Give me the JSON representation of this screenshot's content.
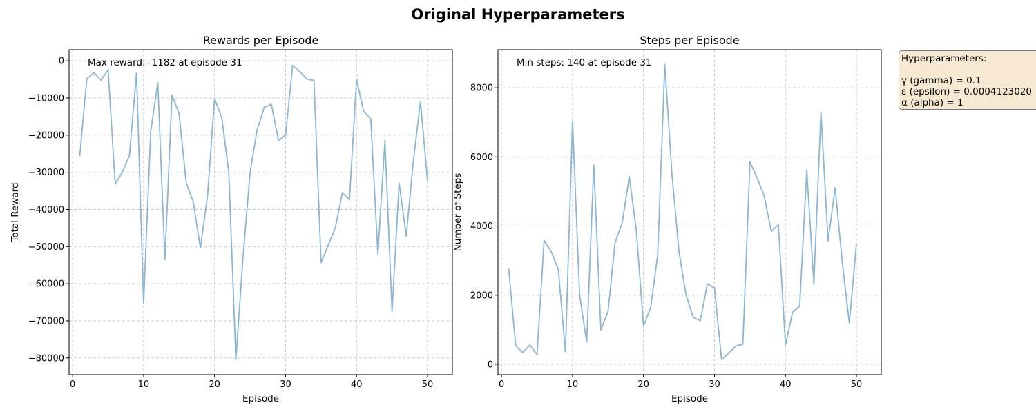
{
  "figure": {
    "suptitle": "Original Hyperparameters"
  },
  "hyperparameters": {
    "heading": "Hyperparameters:",
    "lines": [
      "γ (gamma) = 0.1",
      "ε (epsilon) = 0.0004123020",
      "α (alpha) = 1"
    ]
  },
  "colors": {
    "line": "#8ab6d4",
    "grid": "#c8c8c8",
    "box_fill": "#f7e9d1"
  },
  "chart_data": [
    {
      "type": "line",
      "title": "Rewards per Episode",
      "xlabel": "Episode",
      "ylabel": "Total Reward",
      "annotation": "Max reward: -1182 at episode 31",
      "xlim": [
        -0.5,
        53.5
      ],
      "ylim": [
        -84500,
        3000
      ],
      "xticks": [
        0,
        10,
        20,
        30,
        40,
        50
      ],
      "yticks": [
        0,
        -10000,
        -20000,
        -30000,
        -40000,
        -50000,
        -60000,
        -70000,
        -80000
      ],
      "grid": true,
      "series": [
        {
          "x": [
            1,
            2,
            3,
            4,
            5,
            6,
            7,
            8,
            9,
            10,
            11,
            12,
            13,
            14,
            15,
            16,
            17,
            18,
            19,
            20,
            21,
            22,
            23,
            24,
            25,
            26,
            27,
            28,
            29,
            30,
            31,
            32,
            33,
            34,
            35,
            36,
            37,
            38,
            39,
            40,
            41,
            42,
            43,
            44,
            45,
            46,
            47,
            48,
            49,
            50
          ],
          "values": [
            -25700,
            -4800,
            -3200,
            -5200,
            -2400,
            -33200,
            -30000,
            -25500,
            -3300,
            -65300,
            -19000,
            -5900,
            -53500,
            -9200,
            -14200,
            -32800,
            -38000,
            -50400,
            -36500,
            -10200,
            -15200,
            -30000,
            -80500,
            -53000,
            -30000,
            -18500,
            -12500,
            -11700,
            -21500,
            -20000,
            -1182,
            -2900,
            -4900,
            -5300,
            -54300,
            -49700,
            -45000,
            -35500,
            -37400,
            -5000,
            -13600,
            -15600,
            -52000,
            -21500,
            -67400,
            -32900,
            -47200,
            -27000,
            -11000,
            -32300
          ]
        }
      ]
    },
    {
      "type": "line",
      "title": "Steps per Episode",
      "xlabel": "Episode",
      "ylabel": "Number of Steps",
      "annotation": "Min steps: 140 at episode 31",
      "xlim": [
        -0.5,
        53.5
      ],
      "ylim": [
        -300,
        9100
      ],
      "xticks": [
        0,
        10,
        20,
        30,
        40,
        50
      ],
      "yticks": [
        0,
        2000,
        4000,
        6000,
        8000
      ],
      "grid": true,
      "series": [
        {
          "x": [
            1,
            2,
            3,
            4,
            5,
            6,
            7,
            8,
            9,
            10,
            11,
            12,
            13,
            14,
            15,
            16,
            17,
            18,
            19,
            20,
            21,
            22,
            23,
            24,
            25,
            26,
            27,
            28,
            29,
            30,
            31,
            32,
            33,
            34,
            35,
            36,
            37,
            38,
            39,
            40,
            41,
            42,
            43,
            44,
            45,
            46,
            47,
            48,
            49,
            50
          ],
          "values": [
            2780,
            540,
            340,
            560,
            280,
            3580,
            3260,
            2750,
            360,
            7020,
            2010,
            640,
            5770,
            990,
            1530,
            3530,
            4090,
            5430,
            3850,
            1110,
            1630,
            3160,
            8670,
            5520,
            3260,
            2000,
            1360,
            1260,
            2330,
            2200,
            140,
            320,
            530,
            580,
            5860,
            5390,
            4880,
            3840,
            4040,
            550,
            1510,
            1680,
            5610,
            2340,
            7290,
            3570,
            5110,
            2960,
            1190,
            3490
          ]
        }
      ]
    }
  ]
}
